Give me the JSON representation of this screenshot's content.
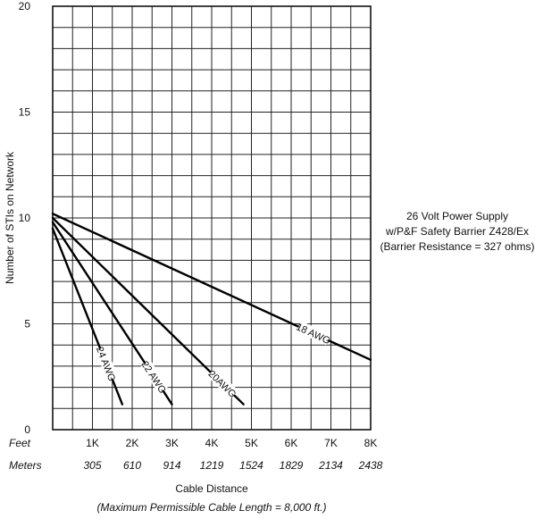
{
  "chart_data": {
    "type": "line",
    "x": [
      0,
      1000,
      2000,
      3000,
      4000,
      5000,
      6000,
      7000,
      8000
    ],
    "x_tick_labels_feet": [
      "1K",
      "2K",
      "3K",
      "4K",
      "5K",
      "6K",
      "7K",
      "8K"
    ],
    "x_tick_labels_meters": [
      "305",
      "610",
      "914",
      "1219",
      "1524",
      "1829",
      "2134",
      "2438"
    ],
    "x_row_label_feet": "Feet",
    "x_row_label_meters": "Meters",
    "xlabel": "Cable Distance",
    "x_note": "(Maximum Permissible Cable Length = 8,000 ft.)",
    "ylabel": "Number of STIs on Network",
    "y_ticks": [
      0,
      5,
      10,
      15,
      20
    ],
    "xlim": [
      0,
      8000
    ],
    "ylim": [
      0,
      20
    ],
    "grid": true,
    "series": [
      {
        "name": "18 AWG",
        "points": [
          [
            0,
            10.2
          ],
          [
            8000,
            3.3
          ]
        ]
      },
      {
        "name": "20AWG",
        "points": [
          [
            0,
            10.0
          ],
          [
            4800,
            1.2
          ]
        ]
      },
      {
        "name": "22 AWG",
        "points": [
          [
            0,
            9.8
          ],
          [
            3000,
            1.2
          ]
        ]
      },
      {
        "name": "24 AWG",
        "points": [
          [
            0,
            9.5
          ],
          [
            1750,
            1.2
          ]
        ]
      }
    ]
  },
  "side_note": {
    "line1": "26 Volt Power Supply",
    "line2": "w/P&F Safety Barrier Z428/Ex",
    "line3": "(Barrier Resistance = 327 ohms)"
  }
}
